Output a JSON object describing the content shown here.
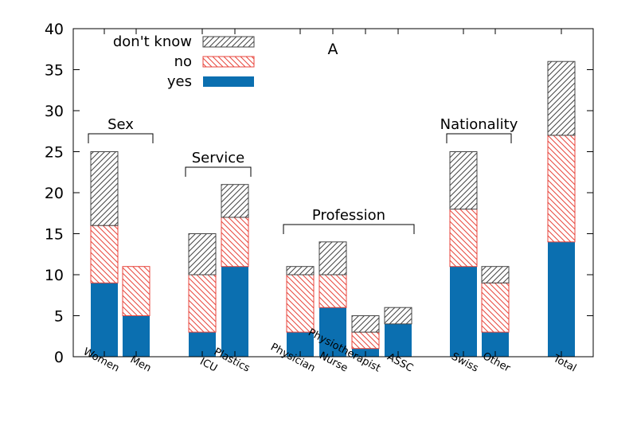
{
  "chart_data": {
    "type": "bar",
    "stacked": true,
    "title": "A",
    "xlabel": "",
    "ylabel": "",
    "ylim": [
      0,
      40
    ],
    "yticks": [
      0,
      5,
      10,
      15,
      20,
      25,
      30,
      35,
      40
    ],
    "categories": [
      "Women",
      "Men",
      "ICU",
      "Plastics",
      "Physician",
      "Nurse",
      "Physiotherapist",
      "ASSC",
      "Swiss",
      "Other",
      "Total"
    ],
    "series": [
      {
        "name": "yes",
        "color": "#0b6fb0",
        "pattern": "solid",
        "values": [
          9,
          5,
          3,
          11,
          3,
          6,
          1,
          4,
          11,
          3,
          14
        ]
      },
      {
        "name": "no",
        "color": "#e8463c",
        "pattern": "hatch-back",
        "values": [
          7,
          6,
          7,
          6,
          7,
          4,
          2,
          0,
          7,
          6,
          13
        ]
      },
      {
        "name": "don't know",
        "color": "#444444",
        "pattern": "hatch-forward",
        "values": [
          9,
          0,
          5,
          4,
          1,
          4,
          2,
          2,
          7,
          2,
          9
        ]
      }
    ],
    "legend_order": [
      "don't know",
      "no",
      "yes"
    ],
    "legend_position": "top-left",
    "groups": [
      {
        "label": "Sex",
        "categories": [
          "Women",
          "Men"
        ]
      },
      {
        "label": "Service",
        "categories": [
          "ICU",
          "Plastics"
        ]
      },
      {
        "label": "Profession",
        "categories": [
          "Physician",
          "Nurse",
          "Physiotherapist",
          "ASSC"
        ]
      },
      {
        "label": "Nationality",
        "categories": [
          "Swiss",
          "Other"
        ]
      }
    ],
    "grid": false
  }
}
